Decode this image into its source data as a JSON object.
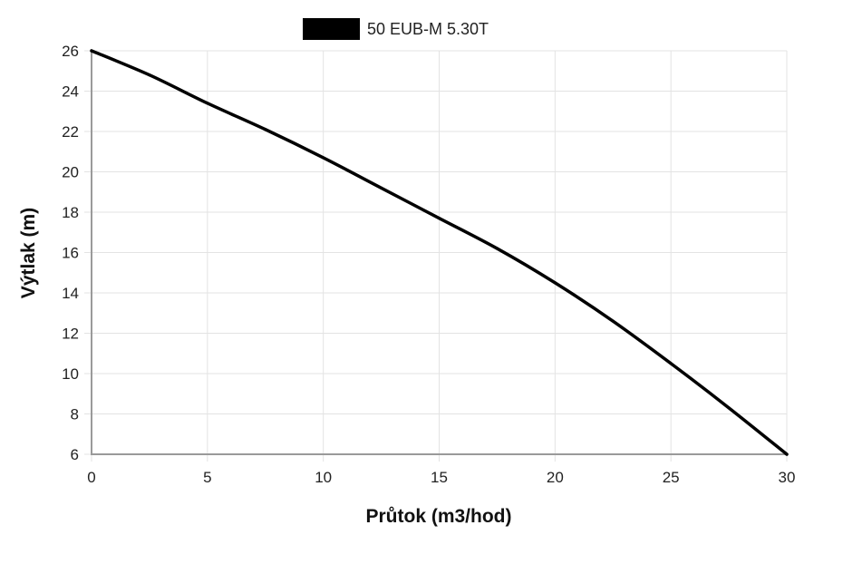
{
  "chart_data": {
    "type": "line",
    "xlabel": "Průtok (m3/hod)",
    "ylabel": "Výtlak (m)",
    "xlim": [
      0,
      30
    ],
    "ylim": [
      6,
      26
    ],
    "x_ticks": [
      0,
      5,
      10,
      15,
      20,
      25,
      30
    ],
    "y_ticks": [
      6,
      8,
      10,
      12,
      14,
      16,
      18,
      20,
      22,
      24,
      26
    ],
    "grid": true,
    "legend_position": "top-center",
    "series": [
      {
        "name": "50 EUB-M 5.30T",
        "color": "#000000",
        "x": [
          0,
          2.5,
          5,
          7.5,
          10,
          12.5,
          15,
          17.5,
          20,
          22.5,
          25,
          27.5,
          30
        ],
        "y": [
          26,
          24.8,
          23.4,
          22.1,
          20.7,
          19.2,
          17.7,
          16.2,
          14.5,
          12.6,
          10.5,
          8.3,
          6
        ]
      }
    ]
  }
}
